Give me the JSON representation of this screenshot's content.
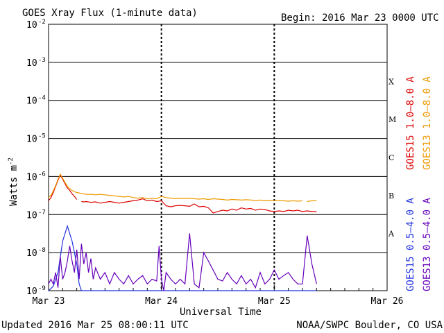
{
  "chart_data": {
    "type": "line",
    "title": "GOES Xray Flux (1-minute data)",
    "begin": "Begin:  2016 Mar 23 0000 UTC",
    "ylabel": "Watts m",
    "ylabel_exp": "-2",
    "xlabel": "Universal Time",
    "yscale": "log",
    "ylim": [
      1e-09,
      0.01
    ],
    "y_ticks": [
      {
        "base": "10",
        "exp": "-2"
      },
      {
        "base": "10",
        "exp": "-3"
      },
      {
        "base": "10",
        "exp": "-4"
      },
      {
        "base": "10",
        "exp": "-5"
      },
      {
        "base": "10",
        "exp": "-6"
      },
      {
        "base": "10",
        "exp": "-7"
      },
      {
        "base": "10",
        "exp": "-8"
      },
      {
        "base": "10",
        "exp": "-9"
      }
    ],
    "xlim": [
      0,
      72
    ],
    "x_units": "hours since begin",
    "x_ticks": [
      {
        "value": 0,
        "label": "Mar 23"
      },
      {
        "value": 24,
        "label": "Mar 24"
      },
      {
        "value": 48,
        "label": "Mar 25"
      },
      {
        "value": 72,
        "label": "Mar 26"
      }
    ],
    "flare_classes": [
      {
        "label": "X",
        "value": 0.0001
      },
      {
        "label": "M",
        "value": 1e-05
      },
      {
        "label": "C",
        "value": 1e-06
      },
      {
        "label": "B",
        "value": 1e-07
      },
      {
        "label": "A",
        "value": 1e-08
      }
    ],
    "series": [
      {
        "name": "GOES15 1.0-8.0 A",
        "color": "#dd0000",
        "x": [
          0,
          0.5,
          1,
          1.5,
          2,
          2.5,
          3,
          3.5,
          4,
          4.5,
          5,
          5.5,
          6,
          6.5,
          7,
          7.5,
          8,
          9,
          10,
          11,
          12,
          13,
          14,
          15,
          16,
          17,
          18,
          19,
          20,
          21,
          22,
          23,
          24,
          25,
          26,
          27,
          28,
          29,
          30,
          31,
          32,
          33,
          34,
          35,
          36,
          37,
          38,
          39,
          40,
          41,
          42,
          43,
          44,
          45,
          46,
          47,
          48,
          49,
          50,
          51,
          52,
          53,
          54,
          55,
          56,
          57
        ],
        "y": [
          2.3e-07,
          2.8e-07,
          3.8e-07,
          5.5e-07,
          8e-07,
          1.1e-06,
          8.5e-07,
          6.5e-07,
          5e-07,
          4.3e-07,
          3.5e-07,
          3e-07,
          2.5e-07,
          null,
          2.2e-07,
          2.15e-07,
          2.2e-07,
          2.1e-07,
          2.15e-07,
          2e-07,
          2.1e-07,
          2.2e-07,
          2.1e-07,
          2e-07,
          2.1e-07,
          2.2e-07,
          2.3e-07,
          2.4e-07,
          2.6e-07,
          2.3e-07,
          2.4e-07,
          2.2e-07,
          2.3e-07,
          1.7e-07,
          1.6e-07,
          1.7e-07,
          1.75e-07,
          1.7e-07,
          1.65e-07,
          1.9e-07,
          1.6e-07,
          1.65e-07,
          1.5e-07,
          1.1e-07,
          1.2e-07,
          1.3e-07,
          1.25e-07,
          1.4e-07,
          1.3e-07,
          1.5e-07,
          1.4e-07,
          1.45e-07,
          1.3e-07,
          1.4e-07,
          1.35e-07,
          1.25e-07,
          1.2e-07,
          1.25e-07,
          1.2e-07,
          1.3e-07,
          1.25e-07,
          1.3e-07,
          1.2e-07,
          1.25e-07,
          1.2e-07,
          1.2e-07
        ]
      },
      {
        "name": "GOES13 1.0-8.0 A",
        "color": "#ee9900",
        "x": [
          0,
          0.5,
          1,
          1.5,
          2,
          2.5,
          3,
          3.5,
          4,
          4.5,
          5,
          5.5,
          6,
          6.5,
          7,
          7.5,
          8,
          9,
          10,
          11,
          12,
          13,
          14,
          15,
          16,
          17,
          18,
          19,
          20,
          21,
          22,
          23,
          24,
          25,
          26,
          27,
          28,
          29,
          30,
          31,
          32,
          33,
          34,
          35,
          36,
          37,
          38,
          39,
          40,
          41,
          42,
          43,
          44,
          45,
          46,
          47,
          48,
          49,
          50,
          51,
          52,
          53,
          54,
          54.5,
          55,
          56,
          57
        ],
        "y": [
          2.8e-07,
          3.2e-07,
          4.2e-07,
          5.8e-07,
          8.5e-07,
          1.15e-06,
          9e-07,
          7e-07,
          5.5e-07,
          4.8e-07,
          4.3e-07,
          4e-07,
          3.8e-07,
          3.7e-07,
          3.6e-07,
          3.5e-07,
          3.4e-07,
          3.4e-07,
          3.3e-07,
          3.4e-07,
          3.3e-07,
          3.2e-07,
          3.1e-07,
          3e-07,
          2.9e-07,
          3e-07,
          2.8e-07,
          2.7e-07,
          2.8e-07,
          2.6e-07,
          2.7e-07,
          2.6e-07,
          3e-07,
          2.8e-07,
          2.7e-07,
          2.6e-07,
          2.7e-07,
          2.65e-07,
          2.7e-07,
          2.6e-07,
          2.55e-07,
          2.6e-07,
          2.5e-07,
          2.6e-07,
          2.55e-07,
          2.5e-07,
          2.4e-07,
          2.5e-07,
          2.45e-07,
          2.4e-07,
          2.45e-07,
          2.4e-07,
          2.35e-07,
          2.4e-07,
          2.3e-07,
          2.35e-07,
          2.3e-07,
          2.35e-07,
          2.3e-07,
          2.25e-07,
          2.3e-07,
          2.25e-07,
          2.3e-07,
          null,
          2.2e-07,
          2.3e-07,
          2.3e-07
        ]
      },
      {
        "name": "GOES15 0.5-4.0 A",
        "color": "#2233dd",
        "x": [
          0,
          1,
          2,
          3,
          4,
          5,
          6,
          6.5,
          7,
          8,
          9,
          10,
          11,
          12,
          13,
          14,
          15,
          16,
          17,
          18,
          19,
          20,
          21,
          22,
          23,
          24,
          25,
          26,
          27,
          28,
          29,
          30,
          31,
          32,
          33,
          34,
          35,
          36,
          37,
          38,
          39,
          40,
          41,
          42,
          43,
          44,
          45,
          46,
          47,
          48,
          49,
          50,
          51,
          52,
          53,
          54,
          55,
          56,
          57
        ],
        "y": [
          1e-09,
          1.3e-09,
          3e-09,
          2e-08,
          5e-08,
          2e-08,
          5e-09,
          1.5e-09,
          1e-09,
          1e-09,
          1e-09,
          1e-09,
          1e-09,
          1e-09,
          1e-09,
          1e-09,
          1e-09,
          1e-09,
          1e-09,
          1e-09,
          1e-09,
          1e-09,
          1e-09,
          1e-09,
          1e-09,
          1e-09,
          1e-09,
          1e-09,
          1e-09,
          1e-09,
          1e-09,
          1e-09,
          1e-09,
          1e-09,
          1e-09,
          1e-09,
          1e-09,
          1e-09,
          1e-09,
          1e-09,
          1e-09,
          1e-09,
          1e-09,
          1e-09,
          1e-09,
          1e-09,
          1e-09,
          1e-09,
          1e-09,
          1e-09,
          1e-09,
          1e-09,
          1e-09,
          1e-09,
          1e-09,
          1e-09,
          1e-09,
          1e-09,
          1e-09
        ]
      },
      {
        "name": "GOES13 0.5-4.0 A",
        "color": "#6600bb",
        "x": [
          0,
          0.5,
          1,
          1.5,
          2,
          2.5,
          3,
          3.5,
          4,
          4.5,
          5,
          5.5,
          6,
          6.5,
          7,
          7.5,
          8,
          8.5,
          9,
          9.5,
          10,
          11,
          12,
          13,
          14,
          15,
          16,
          17,
          18,
          19,
          20,
          21,
          22,
          23,
          23.5,
          24,
          24.5,
          25,
          26,
          27,
          28,
          29,
          30,
          31,
          32,
          33,
          34,
          35,
          36,
          37,
          38,
          39,
          40,
          41,
          42,
          43,
          44,
          45,
          46,
          47,
          48,
          49,
          50,
          51,
          52,
          53,
          54,
          55,
          56,
          57
        ],
        "y": [
          1.5e-09,
          2e-09,
          1.5e-09,
          3e-09,
          1.2e-09,
          8e-09,
          2e-09,
          3e-09,
          6e-09,
          1.5e-08,
          6e-09,
          3e-09,
          1.2e-08,
          2e-09,
          1.7e-08,
          5e-09,
          1e-08,
          3e-09,
          7e-09,
          2e-09,
          4e-09,
          2e-09,
          3e-09,
          1.5e-09,
          3e-09,
          2e-09,
          1.5e-09,
          2.5e-09,
          1.5e-09,
          2e-09,
          2.5e-09,
          1.5e-09,
          2e-09,
          1.8e-09,
          1.5e-08,
          2e-09,
          1e-09,
          3e-09,
          2e-09,
          1.5e-09,
          2e-09,
          1.5e-09,
          3.2e-08,
          1.5e-09,
          1.2e-09,
          1e-08,
          6e-09,
          3.5e-09,
          2e-09,
          1.8e-09,
          3e-09,
          2e-09,
          1.5e-09,
          2.5e-09,
          1.5e-09,
          2e-09,
          1.2e-09,
          3e-09,
          1.5e-09,
          2e-09,
          3.5e-09,
          2e-09,
          2.5e-09,
          3e-09,
          2e-09,
          1.5e-09,
          1.5e-09,
          2.8e-08,
          5e-09,
          1.5e-09
        ]
      }
    ]
  },
  "legend_right": [
    {
      "label": "GOES15 1.0–8.0 A",
      "color": "#dd0000"
    },
    {
      "label": "GOES13 1.0–8.0 A",
      "color": "#ee9900"
    },
    {
      "label": "GOES15 0.5–4.0 A",
      "color": "#2233dd"
    },
    {
      "label": "GOES13 0.5–4.0 A",
      "color": "#6600bb"
    }
  ],
  "footer": {
    "updated": "Updated 2016 Mar 25 08:00:11 UTC",
    "credit": "NOAA/SWPC Boulder, CO USA"
  }
}
